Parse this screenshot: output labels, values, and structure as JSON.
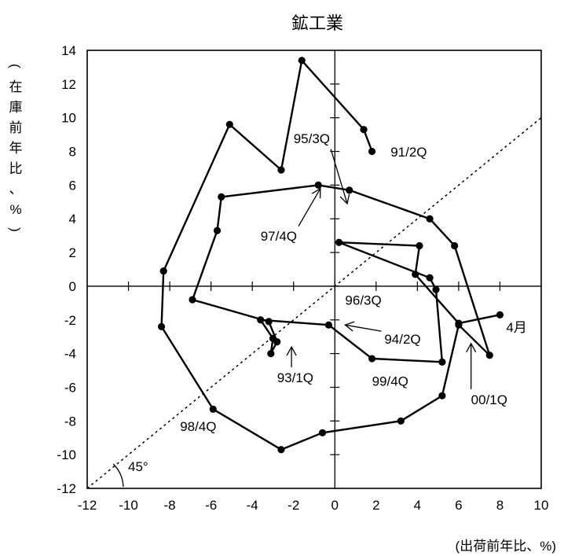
{
  "chart_data": {
    "type": "line",
    "title": "鉱工業",
    "xlabel": "(出荷前年比、%)",
    "ylabel": "(在庫前年比、%)",
    "xlim": [
      -12,
      10
    ],
    "ylim": [
      -12,
      14
    ],
    "xticks": [
      -12,
      -10,
      -8,
      -6,
      -4,
      -2,
      0,
      2,
      4,
      6,
      8,
      10
    ],
    "yticks": [
      -12,
      -10,
      -8,
      -6,
      -4,
      -2,
      0,
      2,
      4,
      6,
      8,
      10,
      12,
      14
    ],
    "xtick_labels": [
      "-12",
      "-10",
      "-8",
      "-6",
      "-4",
      "-2",
      "0",
      "2",
      "4",
      "6",
      "8",
      "10"
    ],
    "ytick_labels": [
      "-12",
      "-10",
      "-8",
      "-6",
      "-4",
      "-2",
      "0",
      "2",
      "4",
      "6",
      "8",
      "10",
      "12",
      "14"
    ],
    "grid": false,
    "legend": "none",
    "series": [
      {
        "points": [
          [
            1.8,
            8.0
          ],
          [
            1.4,
            9.3
          ],
          [
            -1.6,
            13.4
          ],
          [
            -2.6,
            6.9
          ],
          [
            -5.1,
            9.6
          ],
          [
            -8.3,
            0.9
          ],
          [
            -8.4,
            -2.4
          ],
          [
            -5.9,
            -7.3
          ],
          [
            -2.6,
            -9.7
          ],
          [
            -0.6,
            -8.7
          ],
          [
            3.2,
            -8.0
          ],
          [
            5.2,
            -6.5
          ],
          [
            6.0,
            -2.3
          ],
          [
            7.5,
            -4.1
          ],
          [
            5.8,
            2.4
          ],
          [
            4.6,
            4.0
          ],
          [
            0.7,
            5.7
          ],
          [
            -0.8,
            6.0
          ],
          [
            -5.5,
            5.3
          ],
          [
            -5.7,
            3.3
          ],
          [
            -6.9,
            -0.8
          ],
          [
            -3.2,
            -2.1
          ],
          [
            -2.8,
            -3.3
          ],
          [
            -3.1,
            -4.0
          ],
          [
            -3.0,
            -3.1
          ],
          [
            -3.6,
            -2.0
          ],
          [
            -0.3,
            -2.3
          ],
          [
            1.8,
            -4.3
          ],
          [
            5.2,
            -4.5
          ],
          [
            4.9,
            -0.2
          ],
          [
            4.6,
            0.5
          ],
          [
            0.2,
            2.6
          ],
          [
            4.1,
            2.4
          ],
          [
            3.9,
            0.7
          ],
          [
            6.0,
            -2.2
          ],
          [
            8.0,
            -1.7
          ]
        ]
      }
    ],
    "reference_line": {
      "slope": 1,
      "label": "45°"
    },
    "annotations": [
      {
        "text": "91/2Q",
        "x": 2.7,
        "y": 7.7
      },
      {
        "text": "95/3Q",
        "x": -2.0,
        "y": 8.5,
        "arrow_to": [
          0.6,
          4.9
        ]
      },
      {
        "text": "97/4Q",
        "x": -3.6,
        "y": 2.7,
        "arrow_to": [
          -0.7,
          5.8
        ]
      },
      {
        "text": "96/3Q",
        "x": 0.5,
        "y": -1.1
      },
      {
        "text": "94/2Q",
        "x": 2.4,
        "y": -3.4,
        "arrow_to": [
          0.5,
          -2.3
        ]
      },
      {
        "text": "4月",
        "x": 8.3,
        "y": -2.7
      },
      {
        "text": "93/1Q",
        "x": -2.8,
        "y": -5.7,
        "arrow_to": [
          -2.1,
          -3.6
        ]
      },
      {
        "text": "99/4Q",
        "x": 1.8,
        "y": -5.9
      },
      {
        "text": "00/1Q",
        "x": 6.6,
        "y": -7.0,
        "arrow_to": [
          6.6,
          -3.4
        ]
      },
      {
        "text": "98/4Q",
        "x": -7.5,
        "y": -8.6
      }
    ]
  }
}
